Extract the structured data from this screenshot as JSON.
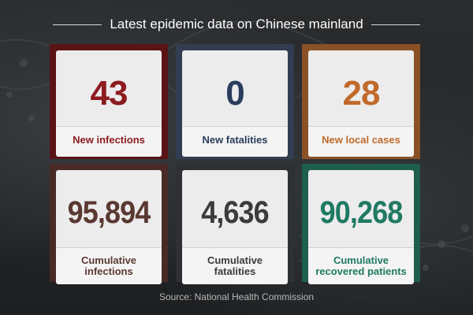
{
  "header": {
    "title": "Latest epidemic data on Chinese mainland"
  },
  "cards": [
    {
      "value": "43",
      "label": "New infections",
      "frame_color": "#5a1416",
      "text_color": "#8e1b1f"
    },
    {
      "value": "0",
      "label": "New fatalities",
      "frame_color": "#333d52",
      "text_color": "#2b3d5c"
    },
    {
      "value": "28",
      "label": "New local cases",
      "frame_color": "#8a5126",
      "text_color": "#c06a2b"
    },
    {
      "value": "95,894",
      "label_line1": "Cumulative",
      "label_line2": "infections",
      "frame_color": "#4a2a26",
      "text_color": "#5a3832"
    },
    {
      "value": "4,636",
      "label_line1": "Cumulative",
      "label_line2": "fatalities",
      "frame_color": "#2e3033",
      "text_color": "#3b3b3b"
    },
    {
      "value": "90,268",
      "label_line1": "Cumulative",
      "label_line2": "recovered patients",
      "frame_color": "#1e5e4d",
      "text_color": "#1f7a63"
    }
  ],
  "source": "Source: National Health Commission"
}
